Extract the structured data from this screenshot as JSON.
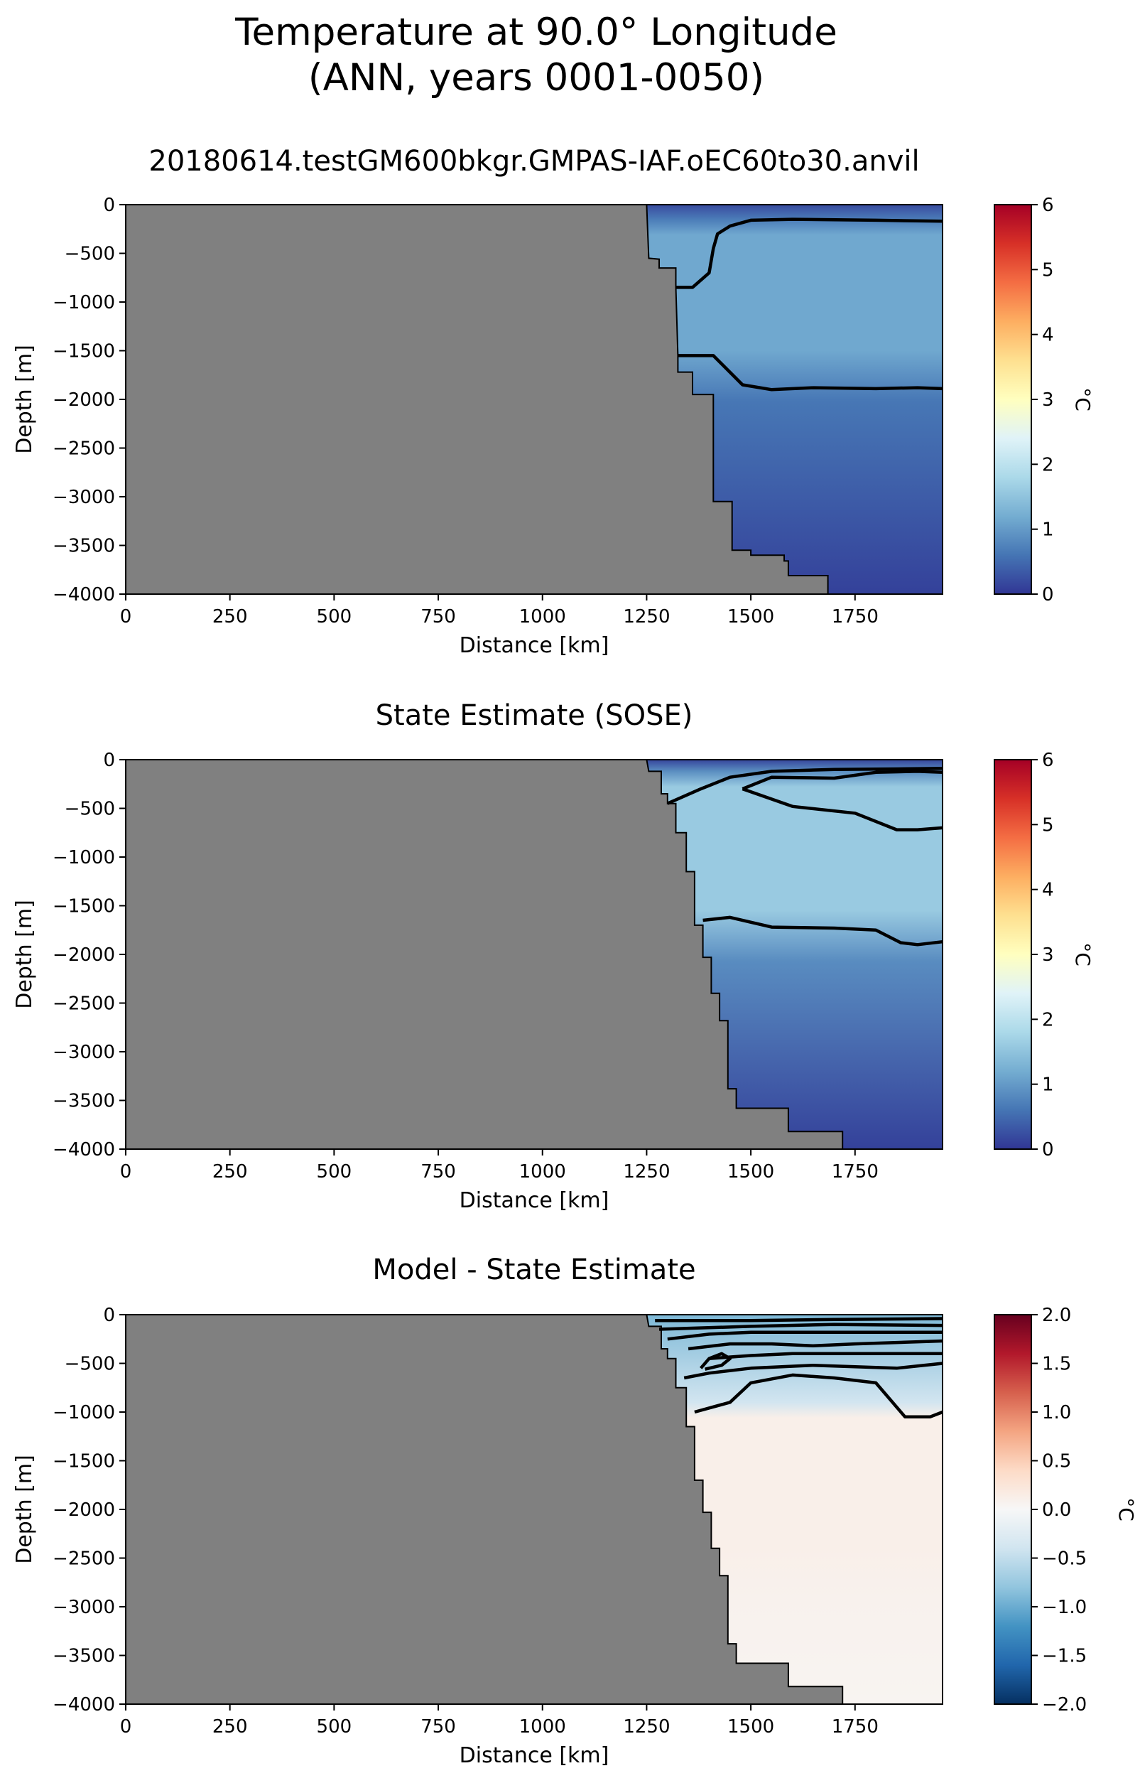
{
  "figure": {
    "title_line1": "Temperature at 90.0° Longitude",
    "title_line2": "(ANN, years 0001-0050)"
  },
  "colors": {
    "land": "#808080",
    "contour": "#000000",
    "background": "#ffffff"
  },
  "chart_data": [
    {
      "type": "heatmap",
      "title": "20180614.testGM600bkgr.GMPAS-IAF.oEC60to30.anvil",
      "xlabel": "Distance [km]",
      "ylabel": "Depth [m]",
      "xlim": [
        0,
        1960
      ],
      "ylim": [
        -4000,
        0
      ],
      "xticks": [
        "0",
        "250",
        "500",
        "750",
        "1000",
        "1250",
        "1500",
        "1750"
      ],
      "yticks": [
        "0",
        "−500",
        "−1000",
        "−1500",
        "−2000",
        "−2500",
        "−3000",
        "−3500",
        "−4000"
      ],
      "colormap": "RdYlBu_r",
      "colorbar": {
        "label": "°C",
        "range": [
          0,
          6
        ],
        "ticks": [
          "0",
          "1",
          "2",
          "3",
          "4",
          "5",
          "6"
        ]
      },
      "bathymetry": [
        [
          1250,
          0
        ],
        [
          1255,
          -550
        ],
        [
          1280,
          -560
        ],
        [
          1280,
          -650
        ],
        [
          1320,
          -650
        ],
        [
          1320,
          -850
        ],
        [
          1325,
          -1550
        ],
        [
          1325,
          -1720
        ],
        [
          1360,
          -1720
        ],
        [
          1360,
          -1950
        ],
        [
          1410,
          -1950
        ],
        [
          1410,
          -3050
        ],
        [
          1455,
          -3050
        ],
        [
          1455,
          -3550
        ],
        [
          1500,
          -3550
        ],
        [
          1500,
          -3600
        ],
        [
          1580,
          -3600
        ],
        [
          1580,
          -3660
        ],
        [
          1590,
          -3660
        ],
        [
          1590,
          -3810
        ],
        [
          1685,
          -3810
        ],
        [
          1685,
          -4000
        ]
      ],
      "field": {
        "surface": 0.2,
        "core": 1.15,
        "deep": 0.1,
        "core_top": -150,
        "core_bottom": -1700
      },
      "contours": [
        [
          [
            1320,
            -850
          ],
          [
            1360,
            -850
          ],
          [
            1400,
            -700
          ],
          [
            1410,
            -450
          ],
          [
            1420,
            -300
          ],
          [
            1450,
            -220
          ],
          [
            1500,
            -160
          ],
          [
            1600,
            -150
          ],
          [
            1800,
            -160
          ],
          [
            1960,
            -170
          ]
        ],
        [
          [
            1325,
            -1550
          ],
          [
            1410,
            -1550
          ],
          [
            1480,
            -1850
          ],
          [
            1550,
            -1900
          ],
          [
            1650,
            -1880
          ],
          [
            1800,
            -1890
          ],
          [
            1900,
            -1880
          ],
          [
            1960,
            -1890
          ]
        ]
      ]
    },
    {
      "type": "heatmap",
      "title": "State Estimate (SOSE)",
      "xlabel": "Distance [km]",
      "ylabel": "Depth [m]",
      "xlim": [
        0,
        1960
      ],
      "ylim": [
        -4000,
        0
      ],
      "xticks": [
        "0",
        "250",
        "500",
        "750",
        "1000",
        "1250",
        "1500",
        "1750"
      ],
      "yticks": [
        "0",
        "−500",
        "−1000",
        "−1500",
        "−2000",
        "−2500",
        "−3000",
        "−3500",
        "−4000"
      ],
      "colormap": "RdYlBu_r",
      "colorbar": {
        "label": "°C",
        "range": [
          0,
          6
        ],
        "ticks": [
          "0",
          "1",
          "2",
          "3",
          "4",
          "5",
          "6"
        ]
      },
      "bathymetry": [
        [
          1250,
          0
        ],
        [
          1255,
          -120
        ],
        [
          1285,
          -120
        ],
        [
          1285,
          -350
        ],
        [
          1300,
          -350
        ],
        [
          1300,
          -450
        ],
        [
          1320,
          -450
        ],
        [
          1320,
          -750
        ],
        [
          1345,
          -750
        ],
        [
          1345,
          -1150
        ],
        [
          1365,
          -1150
        ],
        [
          1365,
          -1700
        ],
        [
          1385,
          -1700
        ],
        [
          1385,
          -2030
        ],
        [
          1405,
          -2030
        ],
        [
          1405,
          -2400
        ],
        [
          1425,
          -2400
        ],
        [
          1425,
          -2680
        ],
        [
          1445,
          -2680
        ],
        [
          1445,
          -3380
        ],
        [
          1465,
          -3380
        ],
        [
          1465,
          -3580
        ],
        [
          1500,
          -3580
        ],
        [
          1590,
          -3580
        ],
        [
          1590,
          -3820
        ],
        [
          1720,
          -3820
        ],
        [
          1720,
          -4000
        ]
      ],
      "field": {
        "surface": 0.15,
        "core": 1.6,
        "deep": 0.1,
        "core_top": -120,
        "core_bottom": -1750
      },
      "contours": [
        [
          [
            1300,
            -450
          ],
          [
            1380,
            -300
          ],
          [
            1450,
            -180
          ],
          [
            1550,
            -120
          ],
          [
            1700,
            -100
          ],
          [
            1850,
            -95
          ],
          [
            1960,
            -90
          ]
        ],
        [
          [
            1480,
            -300
          ],
          [
            1550,
            -180
          ],
          [
            1700,
            -190
          ],
          [
            1800,
            -130
          ],
          [
            1900,
            -120
          ],
          [
            1960,
            -130
          ]
        ],
        [
          [
            1480,
            -300
          ],
          [
            1600,
            -480
          ],
          [
            1750,
            -550
          ],
          [
            1850,
            -720
          ],
          [
            1900,
            -720
          ],
          [
            1960,
            -700
          ]
        ],
        [
          [
            1385,
            -1650
          ],
          [
            1450,
            -1620
          ],
          [
            1550,
            -1720
          ],
          [
            1700,
            -1730
          ],
          [
            1800,
            -1750
          ],
          [
            1860,
            -1880
          ],
          [
            1900,
            -1900
          ],
          [
            1960,
            -1870
          ]
        ]
      ]
    },
    {
      "type": "heatmap",
      "title": "Model - State Estimate",
      "xlabel": "Distance [km]",
      "ylabel": "Depth [m]",
      "xlim": [
        0,
        1960
      ],
      "ylim": [
        -4000,
        0
      ],
      "xticks": [
        "0",
        "250",
        "500",
        "750",
        "1000",
        "1250",
        "1500",
        "1750"
      ],
      "yticks": [
        "0",
        "−500",
        "−1000",
        "−1500",
        "−2000",
        "−2500",
        "−3000",
        "−3500",
        "−4000"
      ],
      "colormap": "RdBu_r",
      "colorbar": {
        "label": "°C",
        "range": [
          -2,
          2
        ],
        "ticks": [
          "−2.0",
          "−1.5",
          "−1.0",
          "−0.5",
          "0.0",
          "0.5",
          "1.0",
          "1.5",
          "2.0"
        ]
      },
      "bathymetry": [
        [
          1250,
          0
        ],
        [
          1255,
          -120
        ],
        [
          1285,
          -120
        ],
        [
          1285,
          -350
        ],
        [
          1300,
          -350
        ],
        [
          1300,
          -450
        ],
        [
          1320,
          -450
        ],
        [
          1320,
          -750
        ],
        [
          1345,
          -750
        ],
        [
          1345,
          -1150
        ],
        [
          1365,
          -1150
        ],
        [
          1365,
          -1700
        ],
        [
          1385,
          -1700
        ],
        [
          1385,
          -2030
        ],
        [
          1405,
          -2030
        ],
        [
          1405,
          -2400
        ],
        [
          1425,
          -2400
        ],
        [
          1425,
          -2680
        ],
        [
          1445,
          -2680
        ],
        [
          1445,
          -3380
        ],
        [
          1465,
          -3380
        ],
        [
          1465,
          -3580
        ],
        [
          1500,
          -3580
        ],
        [
          1590,
          -3580
        ],
        [
          1590,
          -3820
        ],
        [
          1720,
          -3820
        ],
        [
          1720,
          -4000
        ]
      ],
      "field": {
        "surface": -0.9,
        "core": 0.12,
        "deep": 0.05,
        "core_top": -900,
        "core_bottom": -2600
      },
      "contours": [
        [
          [
            1270,
            -60
          ],
          [
            1500,
            -60
          ],
          [
            1700,
            -50
          ],
          [
            1960,
            -40
          ]
        ],
        [
          [
            1280,
            -150
          ],
          [
            1500,
            -120
          ],
          [
            1700,
            -100
          ],
          [
            1960,
            -110
          ]
        ],
        [
          [
            1300,
            -250
          ],
          [
            1400,
            -200
          ],
          [
            1500,
            -180
          ],
          [
            1700,
            -180
          ],
          [
            1960,
            -180
          ]
        ],
        [
          [
            1350,
            -350
          ],
          [
            1450,
            -300
          ],
          [
            1550,
            -300
          ],
          [
            1650,
            -320
          ],
          [
            1750,
            -300
          ],
          [
            1960,
            -270
          ]
        ],
        [
          [
            1400,
            -450
          ],
          [
            1500,
            -420
          ],
          [
            1600,
            -400
          ],
          [
            1750,
            -400
          ],
          [
            1960,
            -400
          ]
        ],
        [
          [
            1340,
            -650
          ],
          [
            1400,
            -600
          ],
          [
            1500,
            -550
          ],
          [
            1650,
            -520
          ],
          [
            1850,
            -550
          ],
          [
            1960,
            -500
          ]
        ],
        [
          [
            1365,
            -1000
          ],
          [
            1450,
            -900
          ],
          [
            1500,
            -700
          ],
          [
            1600,
            -620
          ],
          [
            1700,
            -650
          ],
          [
            1800,
            -700
          ],
          [
            1870,
            -1050
          ],
          [
            1930,
            -1050
          ],
          [
            1960,
            -1000
          ]
        ],
        [
          [
            1380,
            -550
          ],
          [
            1400,
            -450
          ],
          [
            1430,
            -400
          ],
          [
            1450,
            -450
          ],
          [
            1430,
            -520
          ],
          [
            1390,
            -560
          ]
        ]
      ]
    }
  ]
}
